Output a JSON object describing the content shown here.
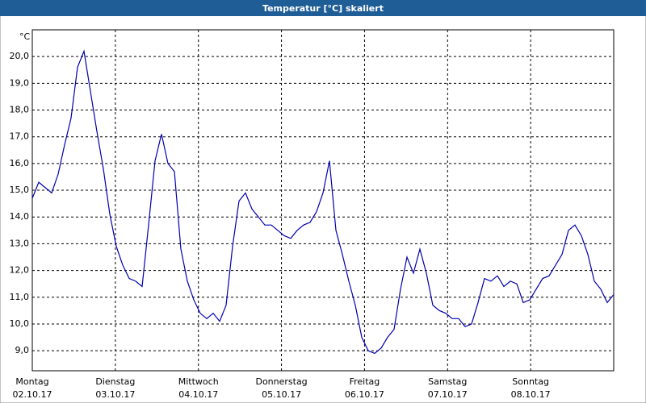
{
  "chart_data": {
    "type": "line",
    "title": "Temperatur [°C] skaliert",
    "y_label": "°C",
    "days": [
      {
        "name": "Montag",
        "date": "02.10.17"
      },
      {
        "name": "Dienstag",
        "date": "03.10.17"
      },
      {
        "name": "Mittwoch",
        "date": "04.10.17"
      },
      {
        "name": "Donnerstag",
        "date": "05.10.17"
      },
      {
        "name": "Freitag",
        "date": "06.10.17"
      },
      {
        "name": "Samstag",
        "date": "07.10.17"
      },
      {
        "name": "Sonntag",
        "date": "08.10.17"
      }
    ],
    "ylim": [
      8.25,
      21.0
    ],
    "yticks": [
      {
        "value": 9,
        "label": "9,0"
      },
      {
        "value": 10,
        "label": "10,0"
      },
      {
        "value": 11,
        "label": "11,0"
      },
      {
        "value": 12,
        "label": "12,0"
      },
      {
        "value": 13,
        "label": "13,0"
      },
      {
        "value": 14,
        "label": "14,0"
      },
      {
        "value": 15,
        "label": "15,0"
      },
      {
        "value": 16,
        "label": "16,0"
      },
      {
        "value": 17,
        "label": "17,0"
      },
      {
        "value": 18,
        "label": "18,0"
      },
      {
        "value": 19,
        "label": "19,0"
      },
      {
        "value": 20,
        "label": "20,0"
      }
    ],
    "grid": true,
    "color": "#0000b0",
    "values": [
      14.7,
      15.3,
      15.1,
      14.9,
      15.6,
      16.7,
      17.7,
      19.6,
      20.2,
      18.7,
      17.2,
      15.8,
      14.1,
      12.9,
      12.2,
      11.7,
      11.6,
      11.4,
      13.7,
      16.1,
      17.1,
      16.0,
      15.7,
      12.8,
      11.6,
      10.9,
      10.4,
      10.2,
      10.4,
      10.1,
      10.7,
      12.9,
      14.6,
      14.9,
      14.3,
      14.0,
      13.7,
      13.7,
      13.5,
      13.3,
      13.2,
      13.5,
      13.7,
      13.8,
      14.2,
      14.9,
      16.1,
      13.5,
      12.6,
      11.6,
      10.7,
      9.5,
      9.0,
      8.9,
      9.1,
      9.5,
      9.8,
      11.3,
      12.5,
      11.9,
      12.8,
      11.9,
      10.7,
      10.5,
      10.4,
      10.2,
      10.2,
      9.9,
      10.0,
      10.8,
      11.7,
      11.6,
      11.8,
      11.4,
      11.6,
      11.5,
      10.8,
      10.9,
      11.3,
      11.7,
      11.8,
      12.2,
      12.6,
      13.5,
      13.7,
      13.3,
      12.6,
      11.6,
      11.3,
      10.8,
      11.1
    ]
  }
}
